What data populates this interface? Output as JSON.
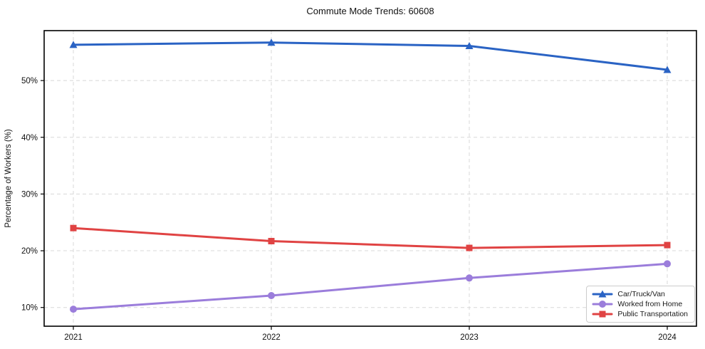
{
  "title": "Commute Mode Trends: 60608",
  "chart_data": {
    "type": "line",
    "title": "Commute Mode Trends: 60608",
    "x": [
      "2021",
      "2022",
      "2023",
      "2024"
    ],
    "series": [
      {
        "name": "Car/Truck/Van",
        "values": [
          56.3,
          56.7,
          56.1,
          51.9
        ],
        "color": "#2a63c4",
        "marker": "triangle"
      },
      {
        "name": "Worked from Home",
        "values": [
          9.7,
          12.1,
          15.2,
          17.7
        ],
        "color": "#9b7ddb",
        "marker": "circle"
      },
      {
        "name": "Public Transportation",
        "values": [
          24.0,
          21.7,
          20.5,
          21.0
        ],
        "color": "#e04343",
        "marker": "square"
      }
    ],
    "xlabel": "",
    "ylabel": "Percentage of Workers (%)",
    "yticks": [
      10,
      20,
      30,
      40,
      50
    ],
    "ytick_labels": [
      "10%",
      "20%",
      "30%",
      "40%",
      "50%"
    ],
    "ylim": [
      6.7,
      58.8
    ],
    "grid": true,
    "grid_color": "#d8d8d8",
    "axis_color": "#000000",
    "legend_position": "lower right"
  }
}
